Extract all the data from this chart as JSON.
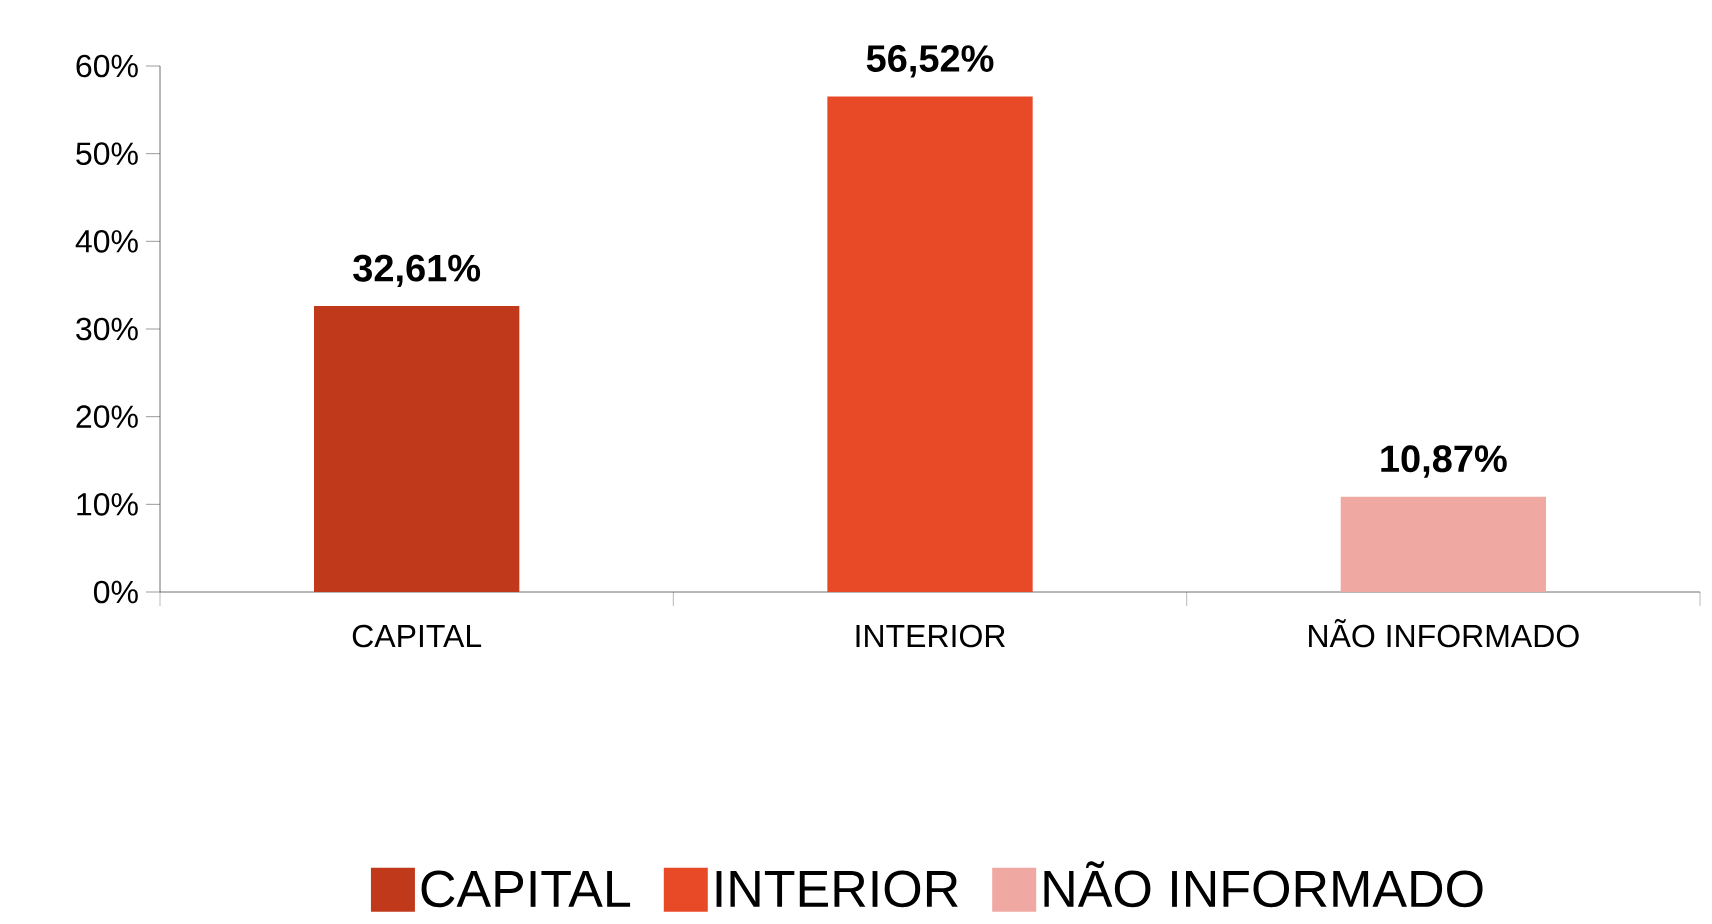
{
  "chart_data": {
    "type": "bar",
    "categories": [
      "CAPITAL",
      "INTERIOR",
      "NÃO INFORMADO"
    ],
    "series": [
      {
        "name": "CAPITAL",
        "color": "#c0391b",
        "values": [
          32.61,
          null,
          null
        ],
        "value_labels": [
          "32,61%",
          null,
          null
        ]
      },
      {
        "name": "INTERIOR",
        "color": "#e84a27",
        "values": [
          null,
          56.52,
          null
        ],
        "value_labels": [
          null,
          "56,52%",
          null
        ]
      },
      {
        "name": "NÃO INFORMADO",
        "color": "#f0a8a2",
        "values": [
          null,
          null,
          10.87
        ],
        "value_labels": [
          null,
          null,
          "10,87%"
        ]
      }
    ],
    "ylim": [
      0,
      60
    ],
    "yticks": [
      {
        "value": 0,
        "label": "0%"
      },
      {
        "value": 10,
        "label": "10%"
      },
      {
        "value": 20,
        "label": "20%"
      },
      {
        "value": 30,
        "label": "30%"
      },
      {
        "value": 40,
        "label": "40%"
      },
      {
        "value": 50,
        "label": "50%"
      },
      {
        "value": 60,
        "label": "60%"
      }
    ],
    "grid": false,
    "legend": "bottom"
  }
}
